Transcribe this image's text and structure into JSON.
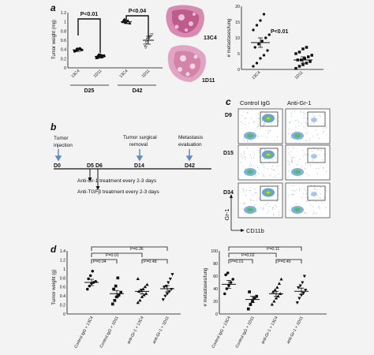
{
  "panel_labels": {
    "a": "a",
    "b": "b",
    "c": "c",
    "d": "d"
  },
  "panel_a": {
    "left_chart": {
      "ylabel": "Tumor weight (mg)",
      "yticks": [
        "0",
        "0.2",
        "0.4",
        "0.6",
        "0.8",
        "1",
        "1.2"
      ],
      "group_labels": [
        "D25",
        "D42"
      ],
      "categories": [
        "13C4",
        "1D11",
        "13C4",
        "1D11"
      ],
      "sig": [
        "P<0.01",
        "P<0.04"
      ],
      "means": [
        0.39,
        0.25,
        1.0,
        0.6
      ],
      "points": [
        [
          0.36,
          0.38,
          0.4,
          0.42,
          0.39,
          0.37,
          0.41
        ],
        [
          0.22,
          0.25,
          0.27,
          0.24,
          0.26,
          0.23,
          0.28
        ],
        [
          1.0,
          1.05,
          0.98,
          1.02,
          0.97,
          1.03,
          0.99
        ],
        [
          0.5,
          0.55,
          0.63,
          0.68,
          0.72,
          0.45,
          0.62
        ]
      ]
    },
    "lung_labels": [
      "13C4",
      "1D11"
    ],
    "right_chart": {
      "ylabel": "# metastases/lung",
      "yticks": [
        "0",
        "5",
        "10",
        "15",
        "20"
      ],
      "categories": [
        "13C4",
        "1D11"
      ],
      "sig": "P<0.01",
      "means": [
        8.5,
        3.0
      ],
      "points": [
        [
          1.0,
          2.0,
          3.5,
          4.5,
          6.0,
          7.0,
          8.0,
          9.0,
          10.0,
          11.0,
          12.5,
          14.0,
          15.5,
          17.5
        ],
        [
          0.3,
          1.0,
          1.5,
          2.0,
          2.5,
          3.0,
          3.0,
          3.5,
          4.0,
          4.5,
          5.0,
          5.5,
          6.5,
          7.0
        ]
      ]
    }
  },
  "panel_b": {
    "events": [
      {
        "label_lines": [
          "Tumor",
          "injection"
        ],
        "day": "D0"
      },
      {
        "label_lines": [
          "Tumor surgical",
          "removal"
        ],
        "day": "D14"
      },
      {
        "label_lines": [
          "Metastasis",
          "evaluation"
        ],
        "day": "D42"
      }
    ],
    "days_extra": [
      "D5",
      "D6"
    ],
    "treatments": [
      "Anti-Gr-1 treatment every 2-3 days",
      "Anti-TGFβ treatment every 2-3 days"
    ]
  },
  "panel_c": {
    "columns": [
      "Control IgG",
      "Anti-Gr-1"
    ],
    "rows": [
      "D9",
      "D15",
      "D34"
    ],
    "yaxis": "Gr-1",
    "xaxis": "CD11b"
  },
  "panel_d": {
    "categories": [
      "Control IgG + 13C4",
      "Control IgG + 1D11",
      "anti-Gr-1 + 13C4",
      "anti-Gr-1 + 1D11"
    ],
    "left_chart": {
      "ylabel": "Tumor weight (g)",
      "yticks": [
        "0",
        "0.2",
        "0.4",
        "0.6",
        "0.8",
        "1",
        "1.2",
        "1.4"
      ],
      "sig": [
        "P=0.04",
        "P=0.01",
        "P=0.36",
        "P=0.48"
      ],
      "means": [
        0.7,
        0.45,
        0.5,
        0.56
      ],
      "points": [
        [
          0.55,
          0.62,
          0.68,
          0.7,
          0.72,
          0.78,
          0.85,
          0.95
        ],
        [
          0.22,
          0.3,
          0.38,
          0.42,
          0.48,
          0.55,
          0.62,
          0.8
        ],
        [
          0.25,
          0.3,
          0.38,
          0.42,
          0.45,
          0.5,
          0.52,
          0.55,
          0.6,
          0.65,
          0.78
        ],
        [
          0.32,
          0.4,
          0.45,
          0.5,
          0.55,
          0.6,
          0.62,
          0.7,
          0.78,
          0.88
        ]
      ]
    },
    "right_chart": {
      "ylabel": "# metastases/lung",
      "yticks": [
        "0",
        "20",
        "40",
        "60",
        "80",
        "100"
      ],
      "sig": [
        "P=0.01",
        "P=0.02",
        "P=0.11",
        "P=0.45"
      ],
      "means": [
        47,
        23,
        32,
        36
      ],
      "points": [
        [
          32,
          40,
          45,
          50,
          55,
          62,
          65
        ],
        [
          8,
          15,
          20,
          25,
          28,
          35
        ],
        [
          15,
          20,
          25,
          28,
          32,
          35,
          38,
          42,
          48,
          55
        ],
        [
          18,
          25,
          30,
          33,
          38,
          42,
          45,
          50,
          60
        ]
      ]
    }
  }
}
